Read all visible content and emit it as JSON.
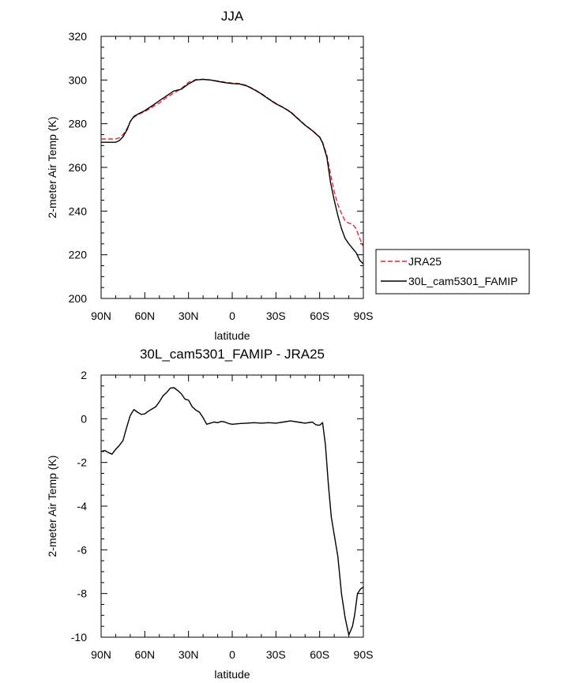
{
  "chart_data": [
    {
      "type": "line",
      "title": "JJA",
      "xlabel": "latitude",
      "ylabel": "2-meter Air Temp (K)",
      "xlim": [
        90,
        -90
      ],
      "ylim": [
        200,
        320
      ],
      "x_ticks": [
        90,
        60,
        30,
        0,
        -30,
        -60,
        -90
      ],
      "x_tick_labels": [
        "90N",
        "60N",
        "30N",
        "0",
        "30S",
        "60S",
        "90S"
      ],
      "y_ticks": [
        200,
        220,
        240,
        260,
        280,
        300,
        320
      ],
      "y_tick_labels": [
        "200",
        "220",
        "240",
        "260",
        "280",
        "300",
        "320"
      ],
      "grid": false,
      "legend_position": "outside-right",
      "series": [
        {
          "name": "JRA25",
          "color": "#e8262b",
          "dash": "dashed",
          "x": [
            90,
            85,
            80,
            77.5,
            75,
            72,
            70,
            67.5,
            65,
            60,
            55,
            50,
            45,
            40,
            35,
            30,
            25,
            20,
            15,
            10,
            5,
            0,
            -5,
            -10,
            -15,
            -20,
            -25,
            -30,
            -35,
            -40,
            -45,
            -50,
            -55,
            -60,
            -62,
            -65,
            -67.5,
            -70,
            -72.5,
            -75,
            -77.5,
            -80,
            -82.5,
            -85,
            -87.5,
            -90
          ],
          "y": [
            273,
            273,
            273,
            273.5,
            275,
            278,
            281,
            283,
            284,
            285.6,
            287.5,
            289.5,
            292,
            294,
            296,
            299,
            300.2,
            300.3,
            300,
            299.5,
            299,
            298.6,
            298.4,
            297.5,
            295.8,
            293.8,
            291.5,
            289.3,
            287.5,
            285.5,
            282.5,
            279.5,
            277,
            274,
            271.5,
            265.5,
            257,
            249,
            243,
            239,
            235.5,
            234.5,
            234,
            232,
            227.5,
            223.5
          ]
        },
        {
          "name": "30L_cam5301_FAMIP",
          "color": "#000000",
          "dash": "solid",
          "x": [
            90,
            85,
            80,
            77.5,
            75,
            72,
            70,
            67.5,
            65,
            60,
            55,
            50,
            45,
            40,
            35,
            30,
            25,
            20,
            15,
            10,
            5,
            0,
            -5,
            -10,
            -15,
            -20,
            -25,
            -30,
            -35,
            -40,
            -45,
            -50,
            -55,
            -60,
            -62,
            -65,
            -67.5,
            -70,
            -72.5,
            -75,
            -77.5,
            -80,
            -82.5,
            -85,
            -87.5,
            -90
          ],
          "y": [
            271.5,
            271.5,
            271.5,
            272.3,
            274,
            277.5,
            281,
            283.3,
            284.3,
            286,
            288.2,
            290.5,
            292.8,
            295,
            295.8,
            298.2,
            300,
            300.3,
            300,
            299.4,
            298.8,
            298.4,
            298.2,
            297.3,
            295.6,
            293.6,
            291.3,
            289.1,
            287.4,
            285.3,
            282.3,
            279.3,
            276.8,
            273.8,
            271.2,
            264.5,
            253,
            245,
            238,
            232,
            227.5,
            225,
            223,
            221,
            217.5,
            215.8
          ]
        }
      ]
    },
    {
      "type": "line",
      "title": "30L_cam5301_FAMIP - JRA25",
      "xlabel": "latitude",
      "ylabel": "2-meter Air Temp (K)",
      "xlim": [
        90,
        -90
      ],
      "ylim": [
        -10,
        2
      ],
      "x_ticks": [
        90,
        60,
        30,
        0,
        -30,
        -60,
        -90
      ],
      "x_tick_labels": [
        "90N",
        "60N",
        "30N",
        "0",
        "30S",
        "60S",
        "90S"
      ],
      "y_ticks": [
        -10,
        -8,
        -6,
        -4,
        -2,
        0,
        2
      ],
      "y_tick_labels": [
        "-10",
        "-8",
        "-6",
        "-4",
        "-2",
        "0",
        "2"
      ],
      "grid": false,
      "series": [
        {
          "color": "#000000",
          "dash": "solid",
          "x": [
            90,
            87.5,
            85,
            82.5,
            80,
            77.5,
            75,
            72.5,
            70,
            67.5,
            65,
            62.5,
            60,
            57.5,
            55,
            52.5,
            50,
            47.5,
            45,
            42.5,
            40,
            37.5,
            35,
            32.5,
            30,
            27.5,
            25,
            22.5,
            20,
            17.5,
            15,
            12.5,
            10,
            7.5,
            5,
            2.5,
            0,
            -5,
            -10,
            -15,
            -20,
            -25,
            -30,
            -35,
            -40,
            -45,
            -50,
            -55,
            -57.5,
            -60,
            -62,
            -64,
            -66,
            -68,
            -70,
            -72.5,
            -75,
            -77.5,
            -80,
            -82.5,
            -84,
            -86,
            -88,
            -90
          ],
          "y": [
            -1.5,
            -1.45,
            -1.55,
            -1.62,
            -1.4,
            -1.22,
            -1.0,
            -0.4,
            0.15,
            0.42,
            0.3,
            0.2,
            0.22,
            0.35,
            0.45,
            0.55,
            0.78,
            1.05,
            1.2,
            1.4,
            1.42,
            1.3,
            1.15,
            0.9,
            0.85,
            0.55,
            0.4,
            0.3,
            0.05,
            -0.25,
            -0.2,
            -0.15,
            -0.18,
            -0.12,
            -0.15,
            -0.22,
            -0.25,
            -0.22,
            -0.2,
            -0.18,
            -0.2,
            -0.18,
            -0.2,
            -0.15,
            -0.1,
            -0.15,
            -0.2,
            -0.15,
            -0.28,
            -0.3,
            -0.18,
            -1.2,
            -3.0,
            -4.5,
            -5.3,
            -6.3,
            -8.0,
            -9.1,
            -9.9,
            -9.5,
            -9.0,
            -8.0,
            -7.8,
            -7.7
          ]
        }
      ]
    }
  ]
}
